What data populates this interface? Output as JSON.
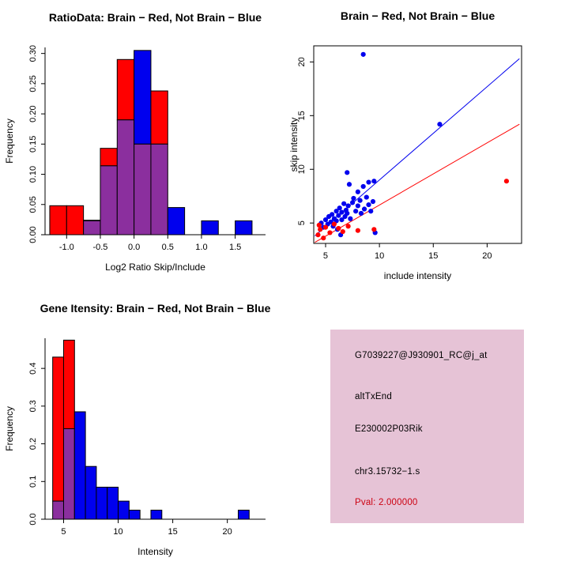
{
  "colors": {
    "red": "#ff0000",
    "blue": "#0000ee",
    "purple": "#8b2f9e",
    "pval_red": "#cc0011",
    "info_bg": "#e6c3d6"
  },
  "chart_data": [
    {
      "id": "ratio-hist",
      "type": "bar",
      "title": "RatioData: Brain − Red, Not Brain − Blue",
      "xlabel": "Log2 Ratio Skip/Include",
      "ylabel": "Frequency",
      "legend": "overlapping histograms, purple = overlap of red (Brain) and blue (Not Brain)",
      "bin_start": -1.25,
      "bin_width": 0.25,
      "xlim": [
        -1.32,
        1.95
      ],
      "ylim": [
        0,
        0.31
      ],
      "xticks": [
        -1.0,
        -0.5,
        0.0,
        0.5,
        1.0,
        1.5
      ],
      "yticks": [
        0.0,
        0.05,
        0.1,
        0.15,
        0.2,
        0.25,
        0.3
      ],
      "xtick_decimals": 1,
      "ytick_decimals": 2,
      "series": [
        {
          "name": "Brain",
          "color": "red",
          "values": [
            0.048,
            0.048,
            0.024,
            0.143,
            0.29,
            0.15,
            0.238,
            0,
            0,
            0,
            0,
            0
          ]
        },
        {
          "name": "Not Brain",
          "color": "blue",
          "values": [
            0,
            0,
            0.023,
            0.114,
            0.19,
            0.305,
            0.15,
            0.045,
            0,
            0.023,
            0,
            0.023
          ]
        }
      ]
    },
    {
      "id": "scatter",
      "type": "scatter",
      "title": "Brain − Red, Not Brain − Blue",
      "xlabel": "include intensity",
      "ylabel": "skip intensity",
      "xlim": [
        3.9,
        23.2
      ],
      "ylim": [
        3.1,
        21.5
      ],
      "xticks": [
        5,
        10,
        15,
        20
      ],
      "yticks": [
        5,
        10,
        15,
        20
      ],
      "xtick_decimals": 0,
      "ytick_decimals": 0,
      "series": [
        {
          "name": "Not Brain",
          "color": "blue",
          "points": [
            [
              4.6,
              5.0
            ],
            [
              4.8,
              4.6
            ],
            [
              5.0,
              5.3
            ],
            [
              5.2,
              4.9
            ],
            [
              5.3,
              5.6
            ],
            [
              5.5,
              5.1
            ],
            [
              5.6,
              5.8
            ],
            [
              5.7,
              4.7
            ],
            [
              5.8,
              5.4
            ],
            [
              6.0,
              5.2
            ],
            [
              6.0,
              6.1
            ],
            [
              6.1,
              4.4
            ],
            [
              6.2,
              5.7
            ],
            [
              6.3,
              6.4
            ],
            [
              6.4,
              3.9
            ],
            [
              6.5,
              5.3
            ],
            [
              6.5,
              6.0
            ],
            [
              6.7,
              6.8
            ],
            [
              6.8,
              5.6
            ],
            [
              6.9,
              6.2
            ],
            [
              7.0,
              5.9
            ],
            [
              7.0,
              9.7
            ],
            [
              7.1,
              6.6
            ],
            [
              7.2,
              8.6
            ],
            [
              7.3,
              5.4
            ],
            [
              7.5,
              6.9
            ],
            [
              7.6,
              7.3
            ],
            [
              7.8,
              6.1
            ],
            [
              8.0,
              6.6
            ],
            [
              8.0,
              7.9
            ],
            [
              8.2,
              7.1
            ],
            [
              8.3,
              5.9
            ],
            [
              8.5,
              8.4
            ],
            [
              8.6,
              6.3
            ],
            [
              8.8,
              7.4
            ],
            [
              9.0,
              6.7
            ],
            [
              9.0,
              8.8
            ],
            [
              9.2,
              6.1
            ],
            [
              9.4,
              7.0
            ],
            [
              9.5,
              8.9
            ],
            [
              9.6,
              4.1
            ],
            [
              8.5,
              20.7
            ],
            [
              15.6,
              14.2
            ]
          ]
        },
        {
          "name": "Brain",
          "color": "red",
          "points": [
            [
              4.3,
              3.9
            ],
            [
              4.4,
              4.8
            ],
            [
              4.5,
              4.4
            ],
            [
              4.8,
              3.6
            ],
            [
              5.0,
              4.6
            ],
            [
              5.4,
              4.1
            ],
            [
              5.8,
              4.9
            ],
            [
              6.2,
              4.5
            ],
            [
              6.6,
              4.2
            ],
            [
              7.1,
              4.7
            ],
            [
              8.0,
              4.3
            ],
            [
              9.5,
              4.4
            ],
            [
              21.8,
              8.9
            ]
          ]
        }
      ],
      "lines": [
        {
          "color": "blue",
          "x1": 4.0,
          "y1": 3.8,
          "x2": 23.0,
          "y2": 20.3
        },
        {
          "color": "red",
          "x1": 4.0,
          "y1": 3.2,
          "x2": 23.0,
          "y2": 14.2
        }
      ]
    },
    {
      "id": "gene-hist",
      "type": "bar",
      "title": "Gene Itensity: Brain − Red, Not Brain − Blue",
      "xlabel": "Intensity",
      "ylabel": "Frequency",
      "legend": "overlapping histograms, purple = overlap of red (Brain) and blue (Not Brain)",
      "bin_start": 4,
      "bin_width": 1,
      "xlim": [
        3.3,
        23.5
      ],
      "ylim": [
        0,
        0.48
      ],
      "xticks": [
        5,
        10,
        15,
        20
      ],
      "yticks": [
        0.0,
        0.1,
        0.2,
        0.3,
        0.4
      ],
      "xtick_decimals": 0,
      "ytick_decimals": 1,
      "series": [
        {
          "name": "Brain",
          "color": "red",
          "values": [
            0.43,
            0.475,
            0,
            0,
            0,
            0,
            0,
            0,
            0,
            0,
            0,
            0,
            0,
            0,
            0,
            0,
            0,
            0
          ]
        },
        {
          "name": "Not Brain",
          "color": "blue",
          "values": [
            0.048,
            0.24,
            0.285,
            0.14,
            0.085,
            0.085,
            0.048,
            0.024,
            0,
            0.024,
            0,
            0,
            0,
            0,
            0,
            0,
            0,
            0.024
          ]
        }
      ]
    }
  ],
  "info_box": {
    "lines": [
      {
        "text": "G7039227@J930901_RC@j_at",
        "color": "#000000"
      },
      {
        "text": "altTxEnd",
        "color": "#000000"
      },
      {
        "text": "E230002P03Rik",
        "color": "#000000"
      },
      {
        "text": "chr3.15732−1.s",
        "color": "#000000"
      },
      {
        "text": "Pval: 2.000000",
        "color": "#cc0011"
      }
    ]
  }
}
